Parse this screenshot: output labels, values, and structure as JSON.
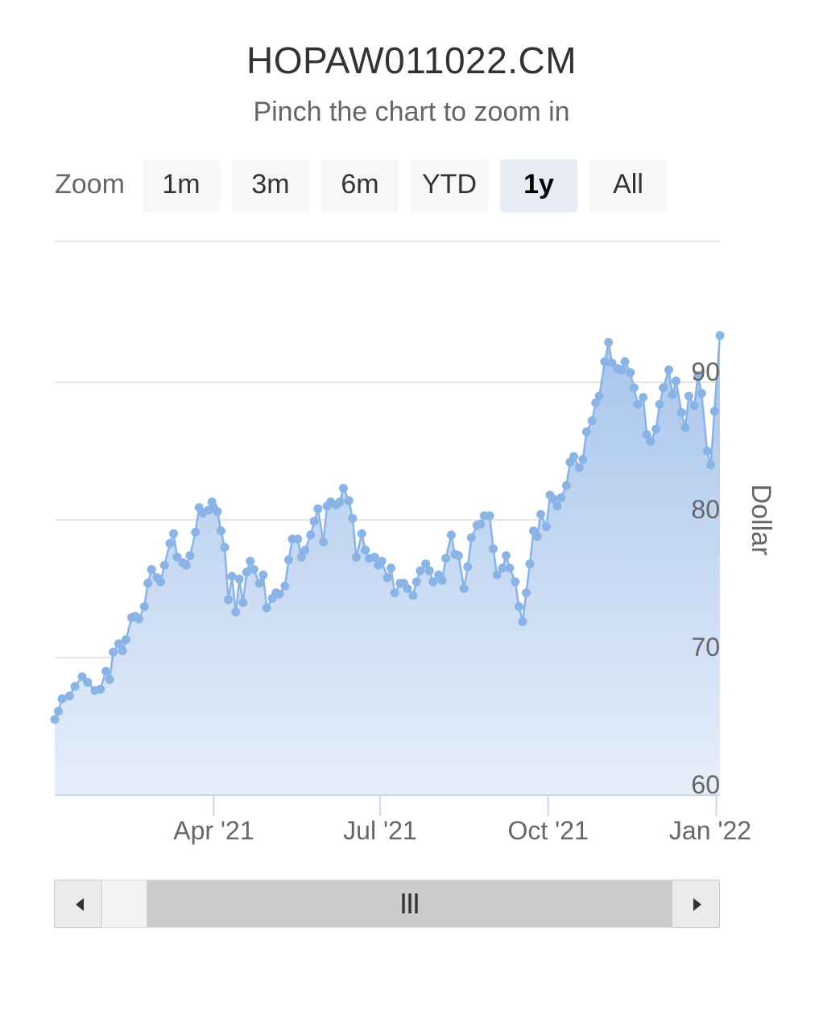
{
  "title": "HOPAW011022.CM",
  "subtitle": "Pinch the chart to zoom in",
  "zoom": {
    "label": "Zoom",
    "buttons": [
      {
        "label": "1m",
        "active": false
      },
      {
        "label": "3m",
        "active": false
      },
      {
        "label": "6m",
        "active": false
      },
      {
        "label": "YTD",
        "active": false
      },
      {
        "label": "1y",
        "active": true
      },
      {
        "label": "All",
        "active": false
      }
    ]
  },
  "navigator": {
    "grip": "III",
    "left_arrow_icon": "triangle-left-icon",
    "right_arrow_icon": "triangle-right-icon"
  },
  "colors": {
    "series": "#8ab4e6",
    "area_top": "#a8c5ec",
    "area_bottom": "#e6eefa",
    "active_button": "#e6ebf5",
    "grid": "#e6e6e6"
  },
  "chart_data": {
    "type": "area",
    "title": "HOPAW011022.CM",
    "subtitle": "Pinch the chart to zoom in",
    "ylabel": "Dollar",
    "xlabel": "",
    "ylim": [
      60,
      95
    ],
    "yticks": [
      "60",
      "70",
      "80",
      "90"
    ],
    "xticks": [
      {
        "label": "Apr '21",
        "date": "2021-04-01"
      },
      {
        "label": "Jul '21",
        "date": "2021-07-01"
      },
      {
        "label": "Oct '21",
        "date": "2021-10-01"
      },
      {
        "label": "Jan '22",
        "date": "2022-01-01"
      }
    ],
    "xrange": [
      "2021-01-04",
      "2022-01-03"
    ],
    "grid": true,
    "legend": "none",
    "series": [
      {
        "points": [
          [
            "2021-01-04",
            65.5
          ],
          [
            "2021-01-06",
            66.1
          ],
          [
            "2021-01-08",
            67.0
          ],
          [
            "2021-01-12",
            67.2
          ],
          [
            "2021-01-15",
            67.9
          ],
          [
            "2021-01-19",
            68.6
          ],
          [
            "2021-01-22",
            68.2
          ],
          [
            "2021-01-26",
            67.6
          ],
          [
            "2021-01-29",
            67.7
          ],
          [
            "2021-02-01",
            69.0
          ],
          [
            "2021-02-03",
            68.4
          ],
          [
            "2021-02-05",
            70.4
          ],
          [
            "2021-02-08",
            71.0
          ],
          [
            "2021-02-10",
            70.5
          ],
          [
            "2021-02-12",
            71.3
          ],
          [
            "2021-02-15",
            72.9
          ],
          [
            "2021-02-17",
            73.0
          ],
          [
            "2021-02-19",
            72.8
          ],
          [
            "2021-02-22",
            73.7
          ],
          [
            "2021-02-24",
            75.4
          ],
          [
            "2021-02-26",
            76.4
          ],
          [
            "2021-03-01",
            75.8
          ],
          [
            "2021-03-03",
            75.5
          ],
          [
            "2021-03-05",
            76.7
          ],
          [
            "2021-03-08",
            78.3
          ],
          [
            "2021-03-10",
            79.0
          ],
          [
            "2021-03-12",
            77.3
          ],
          [
            "2021-03-15",
            76.9
          ],
          [
            "2021-03-17",
            76.7
          ],
          [
            "2021-03-19",
            77.4
          ],
          [
            "2021-03-22",
            79.1
          ],
          [
            "2021-03-24",
            80.9
          ],
          [
            "2021-03-26",
            80.5
          ],
          [
            "2021-03-29",
            80.7
          ],
          [
            "2021-03-31",
            81.3
          ],
          [
            "2021-04-01",
            80.9
          ],
          [
            "2021-04-03",
            80.6
          ],
          [
            "2021-04-05",
            79.2
          ],
          [
            "2021-04-07",
            78.0
          ],
          [
            "2021-04-09",
            74.2
          ],
          [
            "2021-04-11",
            75.9
          ],
          [
            "2021-04-13",
            73.3
          ],
          [
            "2021-04-15",
            75.7
          ],
          [
            "2021-04-17",
            74.0
          ],
          [
            "2021-04-19",
            76.2
          ],
          [
            "2021-04-21",
            77.0
          ],
          [
            "2021-04-23",
            76.4
          ],
          [
            "2021-04-26",
            75.4
          ],
          [
            "2021-04-28",
            76.0
          ],
          [
            "2021-04-30",
            73.6
          ],
          [
            "2021-05-03",
            74.3
          ],
          [
            "2021-05-05",
            74.7
          ],
          [
            "2021-05-07",
            74.6
          ],
          [
            "2021-05-10",
            75.2
          ],
          [
            "2021-05-12",
            77.1
          ],
          [
            "2021-05-14",
            78.6
          ],
          [
            "2021-05-17",
            78.6
          ],
          [
            "2021-05-19",
            77.3
          ],
          [
            "2021-05-21",
            77.8
          ],
          [
            "2021-05-24",
            78.9
          ],
          [
            "2021-05-26",
            79.9
          ],
          [
            "2021-05-28",
            80.8
          ],
          [
            "2021-05-31",
            78.4
          ],
          [
            "2021-06-02",
            81.0
          ],
          [
            "2021-06-04",
            81.3
          ],
          [
            "2021-06-07",
            81.1
          ],
          [
            "2021-06-09",
            81.3
          ],
          [
            "2021-06-11",
            82.3
          ],
          [
            "2021-06-14",
            81.4
          ],
          [
            "2021-06-16",
            80.1
          ],
          [
            "2021-06-18",
            77.3
          ],
          [
            "2021-06-21",
            79.0
          ],
          [
            "2021-06-23",
            77.8
          ],
          [
            "2021-06-25",
            77.2
          ],
          [
            "2021-06-28",
            77.3
          ],
          [
            "2021-06-30",
            76.7
          ],
          [
            "2021-07-02",
            77.0
          ],
          [
            "2021-07-05",
            75.8
          ],
          [
            "2021-07-07",
            76.5
          ],
          [
            "2021-07-09",
            74.7
          ],
          [
            "2021-07-12",
            75.4
          ],
          [
            "2021-07-14",
            75.4
          ],
          [
            "2021-07-16",
            75.0
          ],
          [
            "2021-07-19",
            74.5
          ],
          [
            "2021-07-21",
            75.5
          ],
          [
            "2021-07-23",
            76.3
          ],
          [
            "2021-07-26",
            76.8
          ],
          [
            "2021-07-28",
            76.3
          ],
          [
            "2021-07-30",
            75.5
          ],
          [
            "2021-08-02",
            76.0
          ],
          [
            "2021-08-04",
            75.6
          ],
          [
            "2021-08-06",
            77.2
          ],
          [
            "2021-08-09",
            78.9
          ],
          [
            "2021-08-11",
            77.5
          ],
          [
            "2021-08-13",
            77.4
          ],
          [
            "2021-08-16",
            75.0
          ],
          [
            "2021-08-18",
            76.6
          ],
          [
            "2021-08-20",
            78.7
          ],
          [
            "2021-08-23",
            79.6
          ],
          [
            "2021-08-25",
            79.7
          ],
          [
            "2021-08-27",
            80.3
          ],
          [
            "2021-08-30",
            80.3
          ],
          [
            "2021-09-01",
            77.9
          ],
          [
            "2021-09-03",
            76.0
          ],
          [
            "2021-09-06",
            76.5
          ],
          [
            "2021-09-08",
            77.4
          ],
          [
            "2021-09-10",
            76.5
          ],
          [
            "2021-09-13",
            75.5
          ],
          [
            "2021-09-15",
            73.7
          ],
          [
            "2021-09-17",
            72.6
          ],
          [
            "2021-09-19",
            74.7
          ],
          [
            "2021-09-21",
            76.8
          ],
          [
            "2021-09-23",
            79.2
          ],
          [
            "2021-09-25",
            78.8
          ],
          [
            "2021-09-27",
            80.4
          ],
          [
            "2021-09-30",
            79.5
          ],
          [
            "2021-10-02",
            81.8
          ],
          [
            "2021-10-04",
            81.5
          ],
          [
            "2021-10-06",
            81.0
          ],
          [
            "2021-10-08",
            81.6
          ],
          [
            "2021-10-11",
            82.5
          ],
          [
            "2021-10-13",
            84.2
          ],
          [
            "2021-10-15",
            84.6
          ],
          [
            "2021-10-18",
            83.8
          ],
          [
            "2021-10-20",
            84.4
          ],
          [
            "2021-10-22",
            86.4
          ],
          [
            "2021-10-25",
            87.2
          ],
          [
            "2021-10-27",
            88.5
          ],
          [
            "2021-10-29",
            89.0
          ],
          [
            "2021-11-01",
            91.5
          ],
          [
            "2021-11-03",
            92.9
          ],
          [
            "2021-11-05",
            91.4
          ],
          [
            "2021-11-08",
            91.0
          ],
          [
            "2021-11-10",
            90.9
          ],
          [
            "2021-11-12",
            91.5
          ],
          [
            "2021-11-15",
            90.7
          ],
          [
            "2021-11-17",
            89.6
          ],
          [
            "2021-11-19",
            88.4
          ],
          [
            "2021-11-22",
            88.9
          ],
          [
            "2021-11-24",
            86.2
          ],
          [
            "2021-11-26",
            85.7
          ],
          [
            "2021-11-29",
            86.6
          ],
          [
            "2021-12-01",
            88.4
          ],
          [
            "2021-12-03",
            89.6
          ],
          [
            "2021-12-06",
            90.9
          ],
          [
            "2021-12-08",
            89.1
          ],
          [
            "2021-12-10",
            90.1
          ],
          [
            "2021-12-13",
            87.8
          ],
          [
            "2021-12-15",
            86.7
          ],
          [
            "2021-12-17",
            89.0
          ],
          [
            "2021-12-20",
            88.3
          ],
          [
            "2021-12-22",
            90.5
          ],
          [
            "2021-12-24",
            89.2
          ],
          [
            "2021-12-27",
            85.0
          ],
          [
            "2021-12-29",
            84.0
          ],
          [
            "2021-12-31",
            87.9
          ],
          [
            "2022-01-03",
            93.4
          ]
        ]
      }
    ]
  }
}
